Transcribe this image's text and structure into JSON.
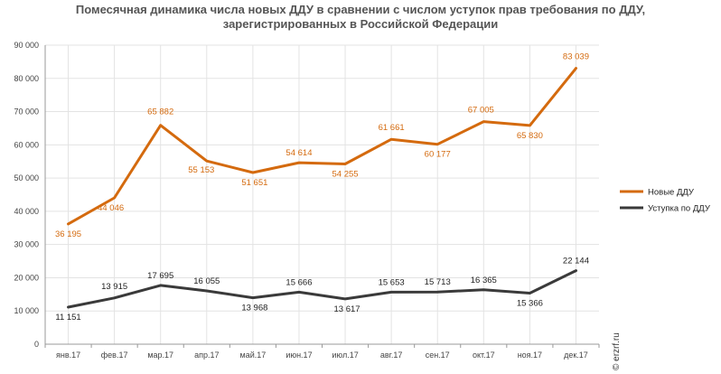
{
  "chart_data": {
    "type": "line",
    "title_lines": [
      "Помесячная динамика числа новых ДДУ в сравнении с числом уступок прав требования по ДДУ,",
      "зарегистрированных в Российской Федерации"
    ],
    "categories": [
      "янв.17",
      "фев.17",
      "мар.17",
      "апр.17",
      "май.17",
      "июн.17",
      "июл.17",
      "авг.17",
      "сен.17",
      "окт.17",
      "ноя.17",
      "дек.17"
    ],
    "series": [
      {
        "name": "Новые ДДУ",
        "color": "#D46A0E",
        "values": [
          36195,
          44046,
          65882,
          55153,
          51651,
          54614,
          54255,
          61661,
          60177,
          67005,
          65830,
          83039
        ],
        "labels": [
          "36 195",
          "44 046",
          "65 882",
          "55 153",
          "51 651",
          "54 614",
          "54 255",
          "61 661",
          "60 177",
          "67 005",
          "65 830",
          "83 039"
        ]
      },
      {
        "name": "Уступка по ДДУ",
        "color": "#3A3A3A",
        "values": [
          11151,
          13915,
          17695,
          16055,
          13968,
          15666,
          13617,
          15653,
          15713,
          16365,
          15366,
          22144
        ],
        "labels": [
          "11 151",
          "13 915",
          "17 695",
          "16 055",
          "13 968",
          "15 666",
          "13 617",
          "15 653",
          "15 713",
          "16 365",
          "15 366",
          "22 144"
        ]
      }
    ],
    "ylim": [
      0,
      90000
    ],
    "y_ticks": [
      0,
      10000,
      20000,
      30000,
      40000,
      50000,
      60000,
      70000,
      80000,
      90000
    ],
    "y_tick_labels": [
      "0",
      "10 000",
      "20 000",
      "30 000",
      "40 000",
      "50 000",
      "60 000",
      "70 000",
      "80 000",
      "90 000"
    ],
    "grid": true,
    "legend_position": "right",
    "xlabel": "",
    "ylabel": ""
  },
  "watermark": "© erzrf.ru"
}
